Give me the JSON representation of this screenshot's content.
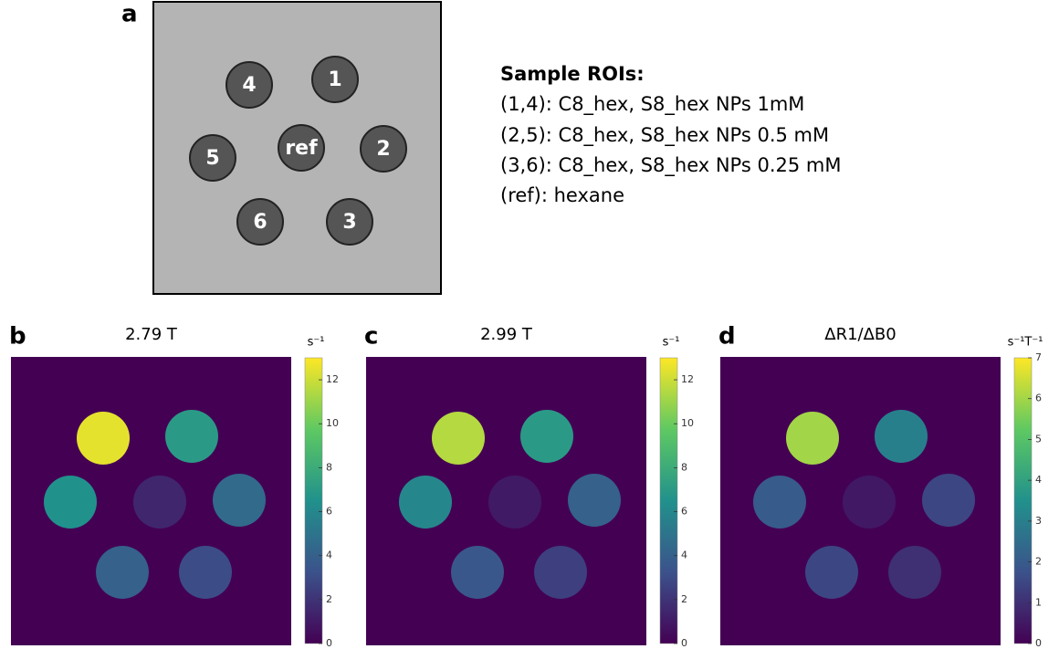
{
  "panel_a": {
    "label": "a",
    "rois": [
      "4",
      "1",
      "5",
      "ref",
      "2",
      "6",
      "3"
    ],
    "legend_title": "Sample ROIs:",
    "legend_lines": [
      "(1,4): C8_hex, S8_hex NPs 1mM",
      "(2,5): C8_hex, S8_hex NPs 0.5 mM",
      "(3,6): C8_hex, S8_hex NPs 0.25 mM",
      "(ref): hexane"
    ]
  },
  "maps": [
    {
      "label": "b",
      "title": "2.79 T",
      "unit": "s⁻¹",
      "clim": [
        0,
        13
      ],
      "ticks": [
        0,
        2,
        4,
        6,
        8,
        10,
        12
      ],
      "roi_values": [
        12.5,
        7,
        6.5,
        1.5,
        4.5,
        4,
        3
      ]
    },
    {
      "label": "c",
      "title": "2.99 T",
      "unit": "s⁻¹",
      "clim": [
        0,
        13
      ],
      "ticks": [
        0,
        2,
        4,
        6,
        8,
        10,
        12
      ],
      "roi_values": [
        11.5,
        7,
        6,
        1,
        4,
        3.5,
        2.5
      ]
    },
    {
      "label": "d",
      "title": "ΔR1/ΔB0",
      "unit": "s⁻¹T⁻¹",
      "clim": [
        0,
        7
      ],
      "ticks": [
        0,
        1,
        2,
        3,
        4,
        5,
        6,
        7
      ],
      "roi_values": [
        6,
        3,
        2,
        0.5,
        1.5,
        1.5,
        1
      ]
    }
  ]
}
